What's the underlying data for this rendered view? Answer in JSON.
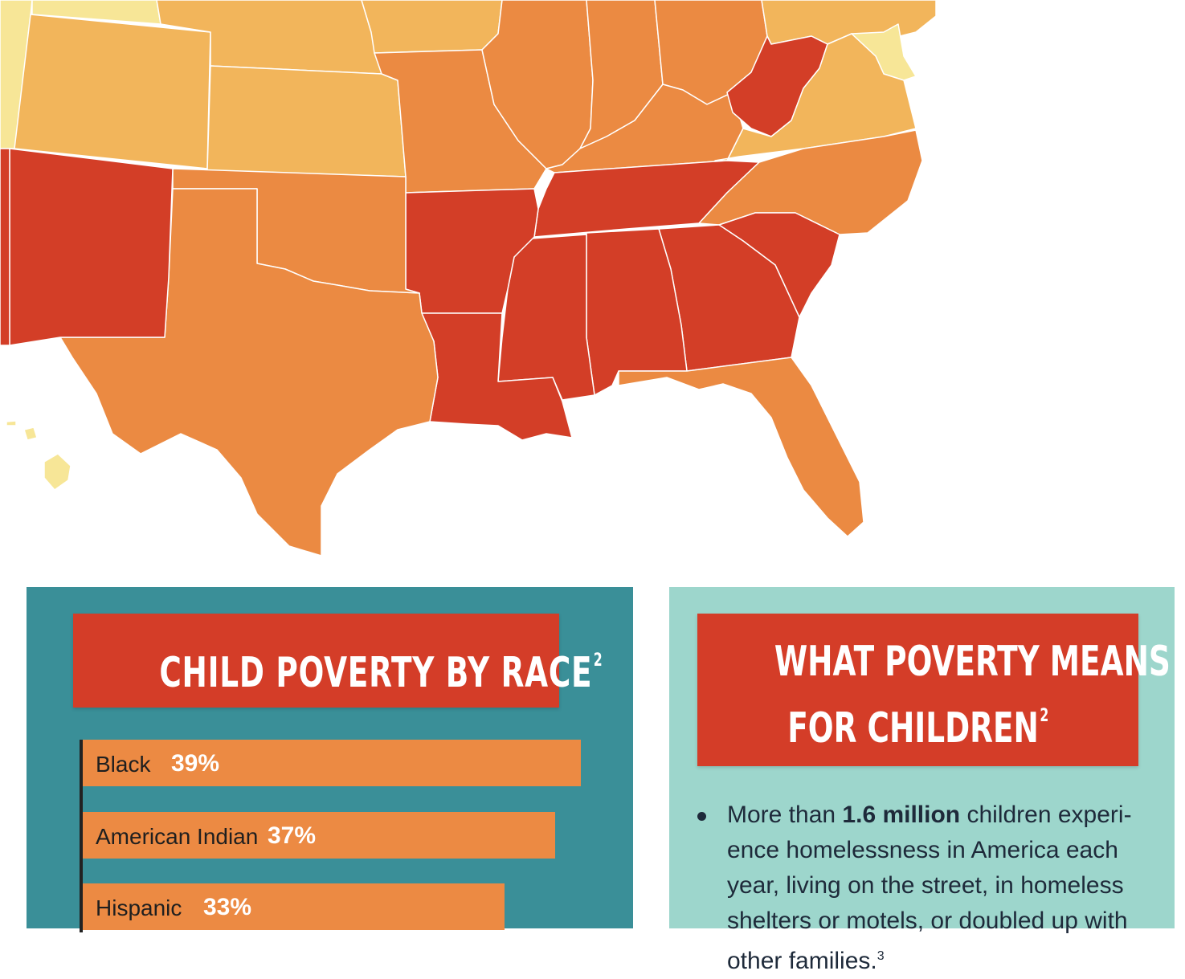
{
  "map": {
    "colors": {
      "lowest": "#f7e697",
      "low": "#f2b55b",
      "medium": "#eb8a42",
      "high": "#d33e27",
      "border": "#ffffff"
    }
  },
  "race_panel": {
    "title": "CHILD POVERTY BY RACE",
    "title_sup": "2",
    "colors": {
      "panel": "#3a8f98",
      "title_bg": "#d43d28",
      "bar": "#ec8a43"
    }
  },
  "chart_data": {
    "type": "bar",
    "orientation": "horizontal",
    "title": "CHILD POVERTY BY RACE",
    "categories": [
      "Black",
      "American Indian",
      "Hispanic"
    ],
    "values": [
      39,
      37,
      33
    ],
    "value_labels": [
      "39%",
      "37%",
      "33%"
    ],
    "unit": "%"
  },
  "means_panel": {
    "title_line1": "WHAT POVERTY MEANS",
    "title_line2": "FOR CHILDREN",
    "title_sup": "2",
    "bullet": {
      "prefix": "More than ",
      "highlight": "1.6 million",
      "text": " children experi-ence homelessness in America each year, living on the street, in homeless shelters or motels, or doubled up with other families.",
      "footnote": "3"
    },
    "colors": {
      "panel": "#9dd6cc",
      "text": "#1e2a3a"
    }
  }
}
